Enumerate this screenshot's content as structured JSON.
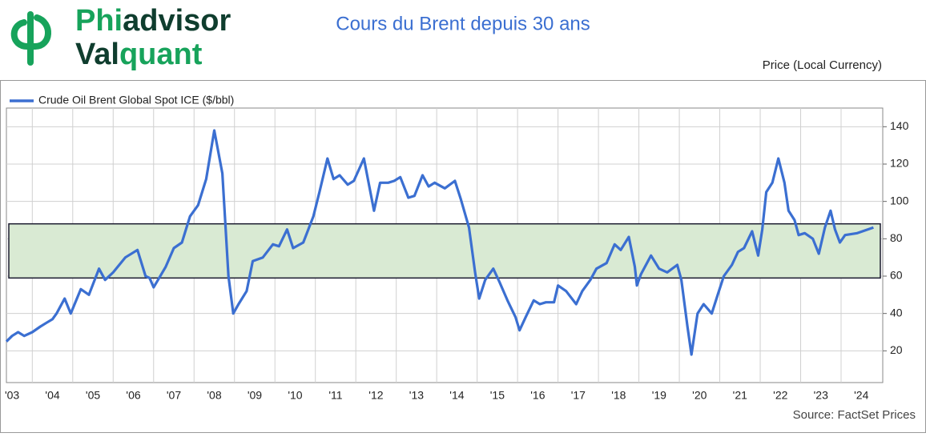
{
  "logo": {
    "part1": "Phi",
    "part2": "advisor",
    "part3": "Val",
    "part4": "quant"
  },
  "chart_data": {
    "type": "line",
    "title": "Cours du Brent depuis 30 ans",
    "y_axis_label": "Price (Local Currency)",
    "source": "Source: FactSet Prices",
    "x": [
      2003.36,
      2003.5,
      2003.65,
      2003.8,
      2004.0,
      2004.2,
      2004.35,
      2004.5,
      2004.6,
      2004.8,
      2004.95,
      2005.2,
      2005.4,
      2005.65,
      2005.8,
      2006.0,
      2006.3,
      2006.6,
      2006.8,
      2006.9,
      2007.0,
      2007.3,
      2007.5,
      2007.7,
      2007.9,
      2008.1,
      2008.3,
      2008.5,
      2008.7,
      2008.85,
      2008.97,
      2009.1,
      2009.3,
      2009.45,
      2009.7,
      2009.95,
      2010.1,
      2010.3,
      2010.45,
      2010.7,
      2010.95,
      2011.1,
      2011.3,
      2011.45,
      2011.6,
      2011.8,
      2011.95,
      2012.2,
      2012.45,
      2012.6,
      2012.8,
      2012.95,
      2013.1,
      2013.3,
      2013.45,
      2013.65,
      2013.8,
      2013.95,
      2014.2,
      2014.45,
      2014.6,
      2014.8,
      2014.95,
      2015.05,
      2015.2,
      2015.4,
      2015.55,
      2015.75,
      2015.95,
      2016.05,
      2016.2,
      2016.4,
      2016.55,
      2016.7,
      2016.9,
      2017.0,
      2017.2,
      2017.45,
      2017.6,
      2017.8,
      2017.95,
      2018.2,
      2018.4,
      2018.55,
      2018.75,
      2018.9,
      2018.95,
      2019.05,
      2019.3,
      2019.5,
      2019.7,
      2019.95,
      2020.05,
      2020.2,
      2020.3,
      2020.45,
      2020.6,
      2020.8,
      2020.95,
      2021.1,
      2021.3,
      2021.45,
      2021.6,
      2021.8,
      2021.95,
      2022.05,
      2022.15,
      2022.3,
      2022.45,
      2022.6,
      2022.7,
      2022.85,
      2022.95,
      2023.1,
      2023.3,
      2023.45,
      2023.6,
      2023.74,
      2023.85,
      2023.97,
      2024.1,
      2024.4,
      2024.8
    ],
    "series": [
      {
        "name": "Crude Oil Brent Global Spot ICE ($/bbl)",
        "color": "#3b6fd1",
        "values": [
          25,
          28,
          30,
          28,
          30,
          33,
          35,
          37,
          40,
          48,
          40,
          53,
          50,
          64,
          58,
          62,
          70,
          74,
          60,
          59,
          54,
          65,
          75,
          78,
          92,
          98,
          112,
          138,
          115,
          60,
          40,
          45,
          52,
          68,
          70,
          77,
          76,
          85,
          75,
          78,
          92,
          105,
          123,
          112,
          114,
          109,
          111,
          123,
          95,
          110,
          110,
          111,
          113,
          102,
          103,
          114,
          108,
          110,
          107,
          111,
          101,
          86,
          62,
          48,
          58,
          64,
          57,
          47,
          38,
          31,
          38,
          47,
          45,
          46,
          46,
          55,
          52,
          45,
          52,
          58,
          64,
          67,
          77,
          74,
          81,
          65,
          55,
          61,
          71,
          64,
          62,
          66,
          58,
          33,
          18,
          40,
          45,
          40,
          50,
          60,
          66,
          73,
          75,
          84,
          71,
          85,
          105,
          110,
          123,
          110,
          95,
          90,
          82,
          83,
          80,
          72,
          86,
          95,
          85,
          78,
          82,
          83,
          86
        ]
      }
    ],
    "band": [
      59,
      88
    ],
    "band_color": "#d9ead3",
    "xlim": [
      2003.36,
      2025.03
    ],
    "ylim": [
      3,
      150
    ],
    "yticks": [
      20,
      40,
      60,
      80,
      100,
      120,
      140
    ],
    "xticks": [
      {
        "value": 2003.5,
        "label": "'03"
      },
      {
        "value": 2004.5,
        "label": "'04"
      },
      {
        "value": 2005.5,
        "label": "'05"
      },
      {
        "value": 2006.5,
        "label": "'06"
      },
      {
        "value": 2007.5,
        "label": "'07"
      },
      {
        "value": 2008.5,
        "label": "'08"
      },
      {
        "value": 2009.5,
        "label": "'09"
      },
      {
        "value": 2010.5,
        "label": "'10"
      },
      {
        "value": 2011.5,
        "label": "'11"
      },
      {
        "value": 2012.5,
        "label": "'12"
      },
      {
        "value": 2013.5,
        "label": "'13"
      },
      {
        "value": 2014.5,
        "label": "'14"
      },
      {
        "value": 2015.5,
        "label": "'15"
      },
      {
        "value": 2016.5,
        "label": "'16"
      },
      {
        "value": 2017.5,
        "label": "'17"
      },
      {
        "value": 2018.5,
        "label": "'18"
      },
      {
        "value": 2019.5,
        "label": "'19"
      },
      {
        "value": 2020.5,
        "label": "'20"
      },
      {
        "value": 2021.5,
        "label": "'21"
      },
      {
        "value": 2022.5,
        "label": "'22"
      },
      {
        "value": 2023.5,
        "label": "'23"
      },
      {
        "value": 2024.5,
        "label": "'24"
      }
    ],
    "xgrid": [
      2004,
      2005,
      2006,
      2007,
      2008,
      2009,
      2010,
      2011,
      2012,
      2013,
      2014,
      2015,
      2016,
      2017,
      2018,
      2019,
      2020,
      2021,
      2022,
      2023,
      2024
    ],
    "grid": true
  }
}
